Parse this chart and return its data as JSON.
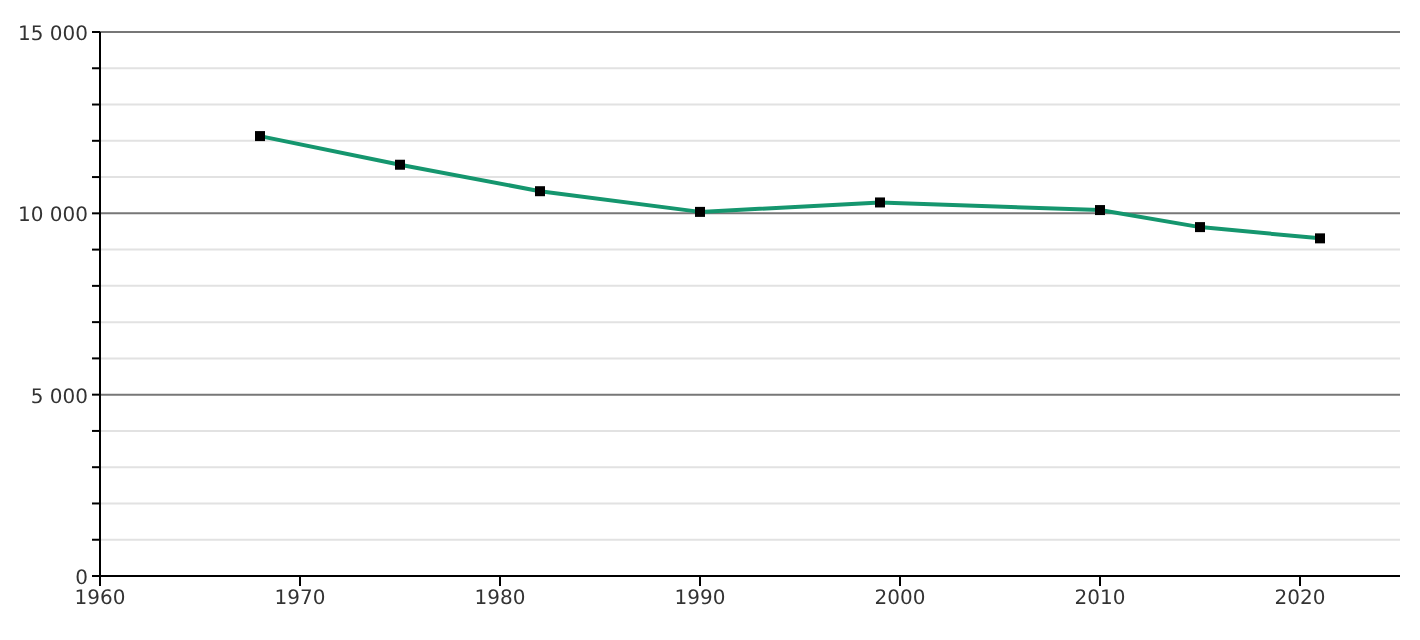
{
  "chart_data": {
    "type": "line",
    "x": [
      1968,
      1975,
      1982,
      1990,
      1999,
      2010,
      2015,
      2021
    ],
    "series": [
      {
        "color": "#15966e",
        "values": [
          12130,
          11340,
          10610,
          10040,
          10300,
          10090,
          9620,
          9310
        ]
      }
    ],
    "xlim": [
      1960,
      2025
    ],
    "xticks": [
      1960,
      1970,
      1980,
      1990,
      2000,
      2010,
      2020
    ],
    "ylim": [
      0,
      15000
    ],
    "yticks": [
      0,
      {
        "value": 1000,
        "label": null
      },
      {
        "value": 2000,
        "label": null
      },
      {
        "value": 3000,
        "label": null
      },
      {
        "value": 4000,
        "label": null
      },
      {
        "value": 5000,
        "label": "5 000"
      },
      {
        "value": 6000,
        "label": null
      },
      {
        "value": 7000,
        "label": null
      },
      {
        "value": 8000,
        "label": null
      },
      {
        "value": 9000,
        "label": null
      },
      {
        "value": 10000,
        "label": "10 000"
      },
      {
        "value": 11000,
        "label": null
      },
      {
        "value": 12000,
        "label": null
      },
      {
        "value": 13000,
        "label": null
      },
      {
        "value": 14000,
        "label": null
      },
      {
        "value": 15000,
        "label": "15 000"
      }
    ],
    "grid": "y",
    "marker": "square",
    "line_style": "solid"
  }
}
